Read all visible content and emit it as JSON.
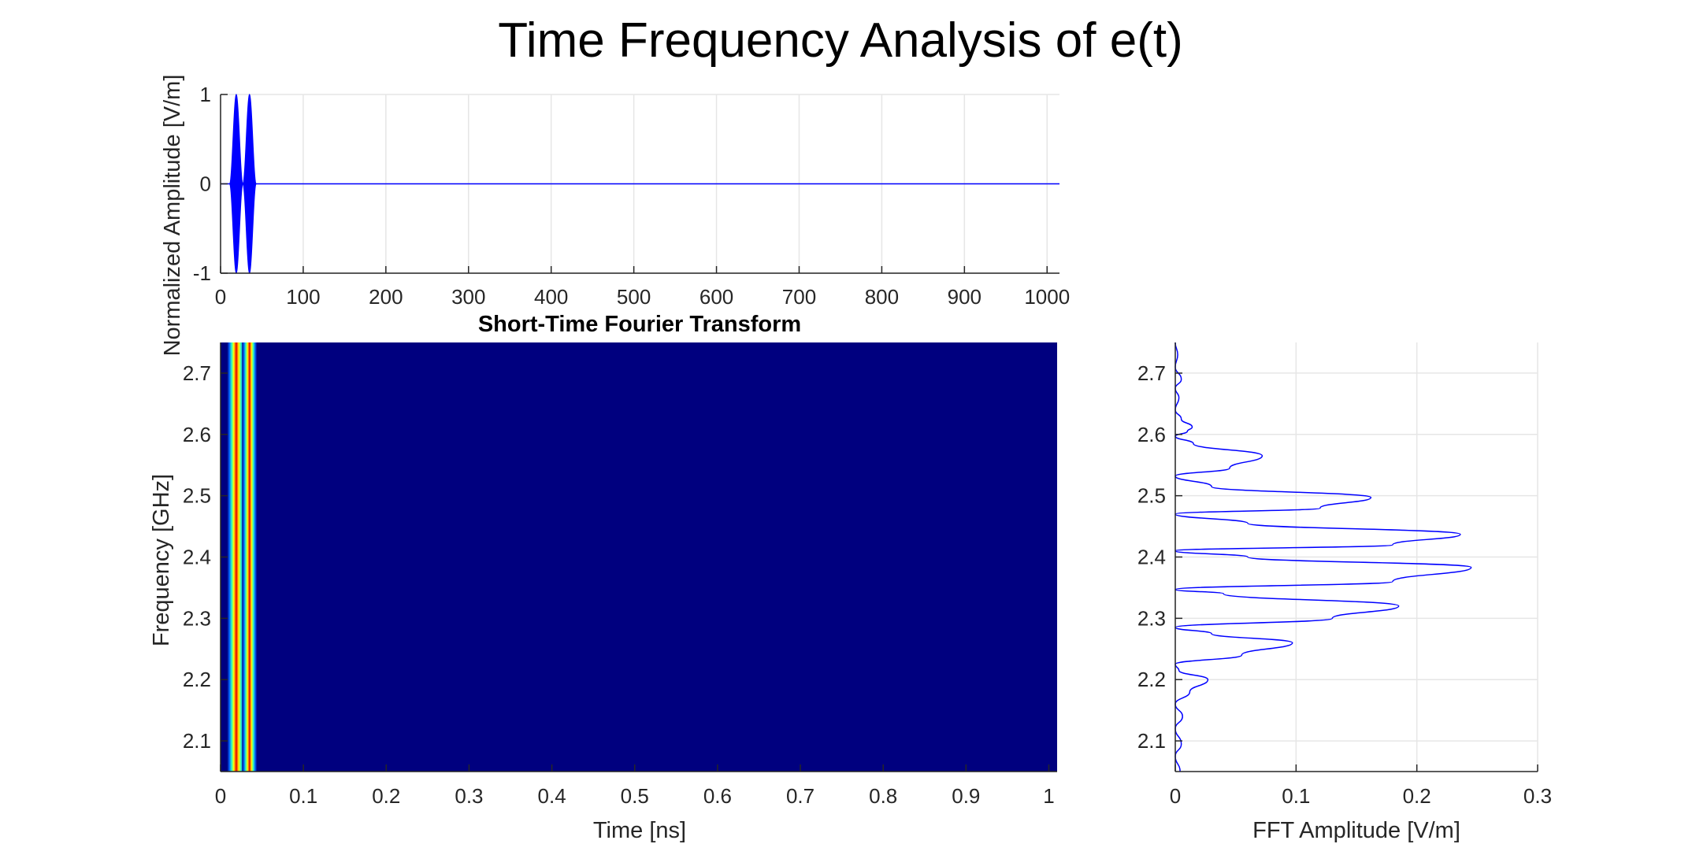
{
  "figure": {
    "title": "Time Frequency Analysis of e(t)",
    "colors": {
      "signal": "#0000ff",
      "grid": "#e6e6e6",
      "axis": "#262626",
      "spectrogram_bg": "#00007f"
    }
  },
  "chart_data": [
    {
      "id": "time-signal",
      "type": "line",
      "title": "",
      "xlabel": "",
      "ylabel": "Normalized Amplitude [V/m]",
      "xlim": [
        0,
        1015
      ],
      "ylim": [
        -1,
        1
      ],
      "xticks": [
        0,
        100,
        200,
        300,
        400,
        500,
        600,
        700,
        800,
        900,
        1000
      ],
      "yticks": [
        -1,
        0,
        1
      ],
      "grid": true,
      "series": [
        {
          "pulses": [
            {
              "center": 19,
              "half_width": 8
            },
            {
              "center": 35,
              "half_width": 8
            }
          ],
          "amplitude": 1,
          "baseline": 0
        }
      ]
    },
    {
      "id": "stft",
      "type": "heatmap",
      "title": "Short-Time Fourier Transform",
      "xlabel": "Time [ns]",
      "ylabel": "Frequency [GHz]",
      "xlim": [
        0,
        1.01
      ],
      "ylim": [
        2.05,
        2.75
      ],
      "xticks": [
        0,
        0.1,
        0.2,
        0.3,
        0.4,
        0.5,
        0.6,
        0.7,
        0.8,
        0.9,
        1
      ],
      "yticks": [
        2.1,
        2.2,
        2.3,
        2.4,
        2.5,
        2.6,
        2.7
      ],
      "grid": false,
      "colormap": "jet",
      "bands": [
        {
          "center": 0.019,
          "half_width": 0.011
        },
        {
          "center": 0.035,
          "half_width": 0.009
        }
      ]
    },
    {
      "id": "fft-spectrum",
      "type": "line",
      "title": "",
      "xlabel": "FFT Amplitude [V/m]",
      "ylabel": "",
      "xlim": [
        0,
        0.3
      ],
      "ylim": [
        2.05,
        2.75
      ],
      "xticks": [
        0,
        0.1,
        0.2,
        0.3
      ],
      "yticks": [
        2.1,
        2.2,
        2.3,
        2.4,
        2.5,
        2.6,
        2.7
      ],
      "grid": true,
      "series": [
        {
          "orientation": "vertical",
          "points": [
            [
              2.05,
              0.004
            ],
            [
              2.075,
              0.0
            ],
            [
              2.095,
              0.005
            ],
            [
              2.12,
              0.0
            ],
            [
              2.14,
              0.006
            ],
            [
              2.16,
              0.0
            ],
            [
              2.18,
              0.012
            ],
            [
              2.2,
              0.027
            ],
            [
              2.215,
              0.003
            ],
            [
              2.225,
              0.0
            ],
            [
              2.24,
              0.055
            ],
            [
              2.26,
              0.097
            ],
            [
              2.275,
              0.03
            ],
            [
              2.285,
              0.0
            ],
            [
              2.3,
              0.13
            ],
            [
              2.32,
              0.185
            ],
            [
              2.34,
              0.04
            ],
            [
              2.347,
              0.0
            ],
            [
              2.36,
              0.18
            ],
            [
              2.383,
              0.245
            ],
            [
              2.4,
              0.06
            ],
            [
              2.41,
              0.0
            ],
            [
              2.42,
              0.18
            ],
            [
              2.437,
              0.236
            ],
            [
              2.455,
              0.06
            ],
            [
              2.47,
              0.0
            ],
            [
              2.48,
              0.12
            ],
            [
              2.497,
              0.162
            ],
            [
              2.515,
              0.03
            ],
            [
              2.532,
              0.0
            ],
            [
              2.545,
              0.045
            ],
            [
              2.565,
              0.072
            ],
            [
              2.585,
              0.015
            ],
            [
              2.597,
              0.0
            ],
            [
              2.605,
              0.01
            ],
            [
              2.612,
              0.014
            ],
            [
              2.625,
              0.005
            ],
            [
              2.64,
              0.0
            ],
            [
              2.66,
              0.003
            ],
            [
              2.675,
              0.0
            ],
            [
              2.69,
              0.005
            ],
            [
              2.71,
              0.0
            ],
            [
              2.73,
              0.002
            ],
            [
              2.75,
              0.0
            ]
          ]
        }
      ]
    }
  ]
}
